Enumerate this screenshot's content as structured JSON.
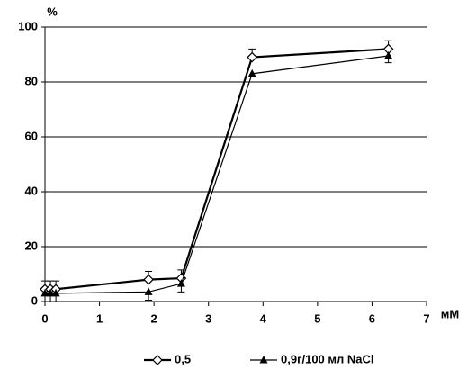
{
  "chart_data": {
    "type": "line",
    "y_label": "%",
    "x_label": "мМ",
    "xlim": [
      0,
      7
    ],
    "xticks": [
      0,
      1,
      2,
      3,
      4,
      5,
      6,
      7
    ],
    "ylim": [
      0,
      100
    ],
    "yticks": [
      0,
      20,
      40,
      60,
      80,
      100
    ],
    "grid": true,
    "series": [
      {
        "name": "0,5",
        "color": "#000000",
        "marker": "diamond",
        "x": [
          0,
          0.1,
          0.2,
          1.9,
          2.5,
          3.8,
          6.3
        ],
        "values": [
          4.5,
          4.5,
          4.5,
          8,
          8.5,
          89,
          92
        ],
        "errors": [
          3,
          3,
          3,
          3,
          3,
          3,
          3
        ]
      },
      {
        "name": "0,9г/100 мл NaCl",
        "color": "#000000",
        "marker": "triangle",
        "x": [
          0,
          0.1,
          0.2,
          1.9,
          2.5,
          3.8,
          6.3
        ],
        "values": [
          3,
          3,
          3,
          3.5,
          6.5,
          83,
          89.5
        ],
        "errors": [
          3,
          3,
          3,
          3,
          3,
          0,
          2.5
        ]
      }
    ]
  }
}
